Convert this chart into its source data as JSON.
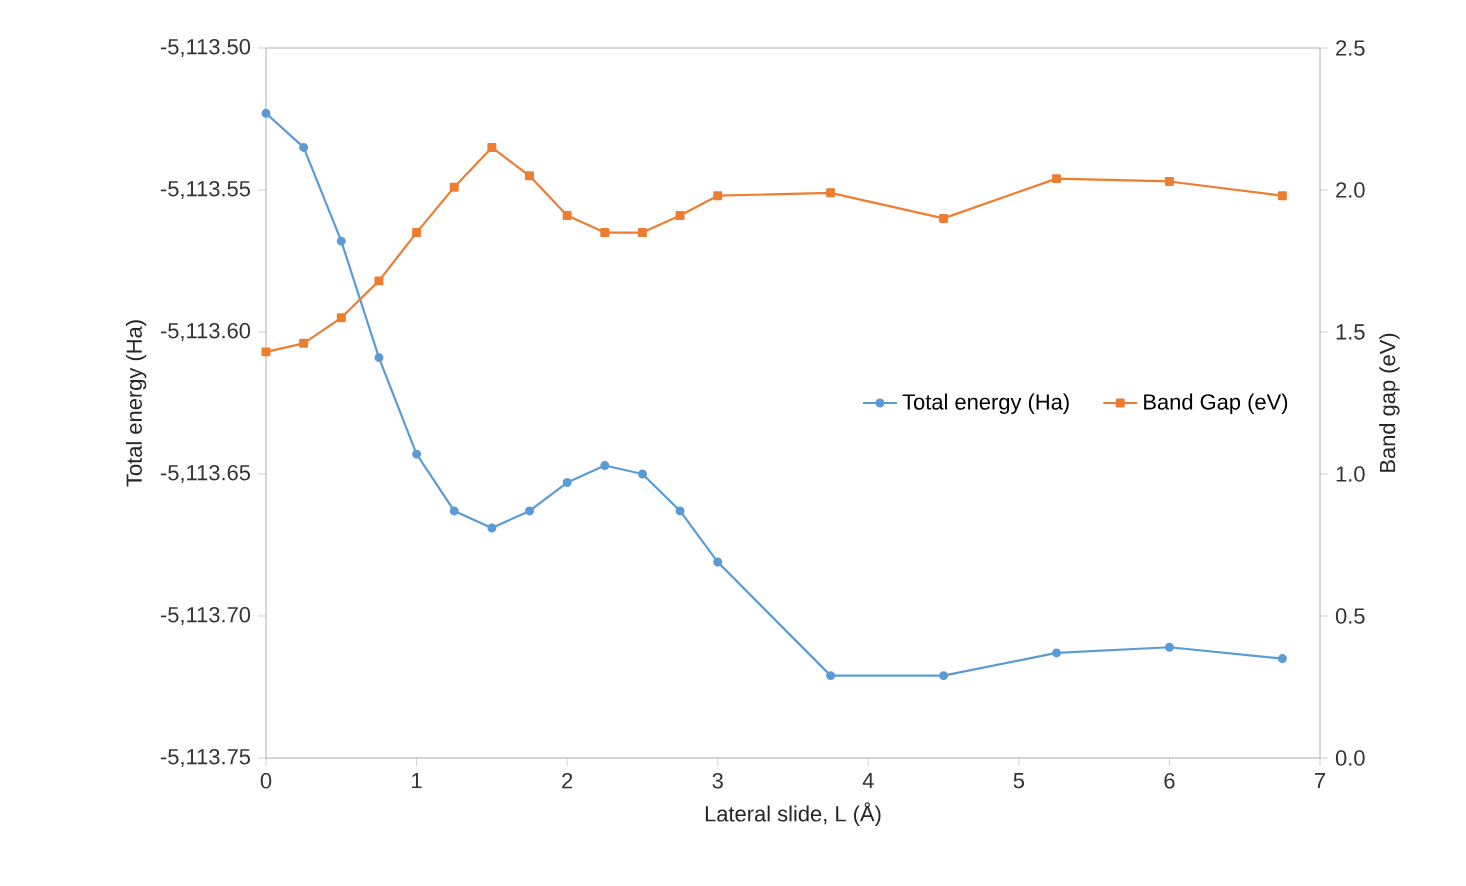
{
  "chart_data": {
    "type": "line",
    "xlabel": "Lateral slide, L (Å)",
    "ylabel": "Total energy (Ha)",
    "y2label": "Band gap (eV)",
    "x": [
      0,
      0.25,
      0.5,
      0.75,
      1.0,
      1.25,
      1.5,
      1.75,
      2.0,
      2.25,
      2.5,
      2.75,
      3.0,
      3.75,
      4.5,
      5.25,
      6.0,
      6.75
    ],
    "series": [
      {
        "name": "Total energy (Ha)",
        "color": "#5b9bd5",
        "marker": "circle",
        "values": [
          -5113.523,
          -5113.535,
          -5113.568,
          -5113.609,
          -5113.643,
          -5113.663,
          -5113.669,
          -5113.663,
          -5113.653,
          -5113.647,
          -5113.65,
          -5113.663,
          -5113.681,
          -5113.721,
          -5113.721,
          -5113.713,
          -5113.711,
          -5113.715
        ]
      },
      {
        "name": "Band Gap (eV)",
        "color": "#ed7d31",
        "marker": "square",
        "axis": "y2",
        "values": [
          1.43,
          1.46,
          1.55,
          1.68,
          1.85,
          2.01,
          2.15,
          2.05,
          1.91,
          1.85,
          1.85,
          1.91,
          1.98,
          1.99,
          1.9,
          2.04,
          2.03,
          1.98
        ]
      }
    ],
    "xlim": [
      0,
      7
    ],
    "xticks": [
      0,
      1,
      2,
      3,
      4,
      5,
      6,
      7
    ],
    "ylim": [
      -5113.75,
      -5113.5
    ],
    "yticks": [
      {
        "value": -5113.75,
        "label": "-5,113.75"
      },
      {
        "value": -5113.7,
        "label": "-5,113.70"
      },
      {
        "value": -5113.65,
        "label": "-5,113.65"
      },
      {
        "value": -5113.6,
        "label": "-5,113.60"
      },
      {
        "value": -5113.55,
        "label": "-5,113.55"
      },
      {
        "value": -5113.5,
        "label": "-5,113.50"
      }
    ],
    "y2lim": [
      0,
      2.5
    ],
    "y2ticks": [
      {
        "value": 0,
        "label": "0.0"
      },
      {
        "value": 0.5,
        "label": "0.5"
      },
      {
        "value": 1,
        "label": "1.0"
      },
      {
        "value": 1.5,
        "label": "1.5"
      },
      {
        "value": 2,
        "label": "2.0"
      },
      {
        "value": 2.5,
        "label": "2.5"
      }
    ],
    "legend": "right",
    "grid": false,
    "line_style": "solid"
  }
}
